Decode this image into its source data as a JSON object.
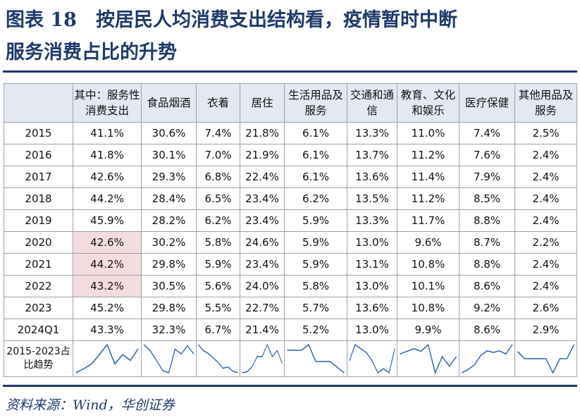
{
  "title": {
    "line1": "图表 18　按居民人均消费支出结构看，疫情暂时中断",
    "line2": "服务消费占比的升势"
  },
  "table": {
    "headers": [
      "",
      "其中：服务性消费支出",
      "食品烟酒",
      "衣着",
      "居住",
      "生活用品及服务",
      "交通和通信",
      "教育、文化和娱乐",
      "医疗保健",
      "其他用品及服务"
    ],
    "rows": [
      {
        "year": "2015",
        "cells": [
          "41.1%",
          "30.6%",
          "7.4%",
          "21.8%",
          "6.1%",
          "13.3%",
          "11.0%",
          "7.4%",
          "2.5%"
        ],
        "highlight": false
      },
      {
        "year": "2016",
        "cells": [
          "41.8%",
          "30.1%",
          "7.0%",
          "21.9%",
          "6.1%",
          "13.7%",
          "11.2%",
          "7.6%",
          "2.4%"
        ],
        "highlight": false
      },
      {
        "year": "2017",
        "cells": [
          "42.6%",
          "29.3%",
          "6.8%",
          "22.4%",
          "6.1%",
          "13.6%",
          "11.4%",
          "7.9%",
          "2.4%"
        ],
        "highlight": false
      },
      {
        "year": "2018",
        "cells": [
          "44.2%",
          "28.4%",
          "6.5%",
          "23.4%",
          "6.2%",
          "13.5%",
          "11.2%",
          "8.5%",
          "2.4%"
        ],
        "highlight": false
      },
      {
        "year": "2019",
        "cells": [
          "45.9%",
          "28.2%",
          "6.2%",
          "23.4%",
          "5.9%",
          "13.3%",
          "11.7%",
          "8.8%",
          "2.4%"
        ],
        "highlight": false
      },
      {
        "year": "2020",
        "cells": [
          "42.6%",
          "30.2%",
          "5.8%",
          "24.6%",
          "5.9%",
          "13.0%",
          "9.6%",
          "8.7%",
          "2.2%"
        ],
        "highlight": true
      },
      {
        "year": "2021",
        "cells": [
          "44.2%",
          "29.8%",
          "5.9%",
          "23.4%",
          "5.9%",
          "13.1%",
          "10.8%",
          "8.8%",
          "2.4%"
        ],
        "highlight": true
      },
      {
        "year": "2022",
        "cells": [
          "43.2%",
          "30.5%",
          "5.6%",
          "24.0%",
          "5.8%",
          "13.0%",
          "10.1%",
          "8.6%",
          "2.4%"
        ],
        "highlight": true
      },
      {
        "year": "2023",
        "cells": [
          "45.2%",
          "29.8%",
          "5.5%",
          "22.7%",
          "5.7%",
          "13.6%",
          "10.8%",
          "9.2%",
          "2.6%"
        ],
        "highlight": false
      },
      {
        "year": "2024Q1",
        "cells": [
          "43.3%",
          "32.3%",
          "6.7%",
          "21.4%",
          "5.2%",
          "13.0%",
          "9.9%",
          "8.6%",
          "2.9%"
        ],
        "highlight": false
      }
    ],
    "sparkline_label": "2015-2023占比趋势",
    "sparkline_color": "#2e64b0",
    "highlight_color": "#f2dcdd"
  },
  "source": "资料来源：Wind，华创证券"
}
